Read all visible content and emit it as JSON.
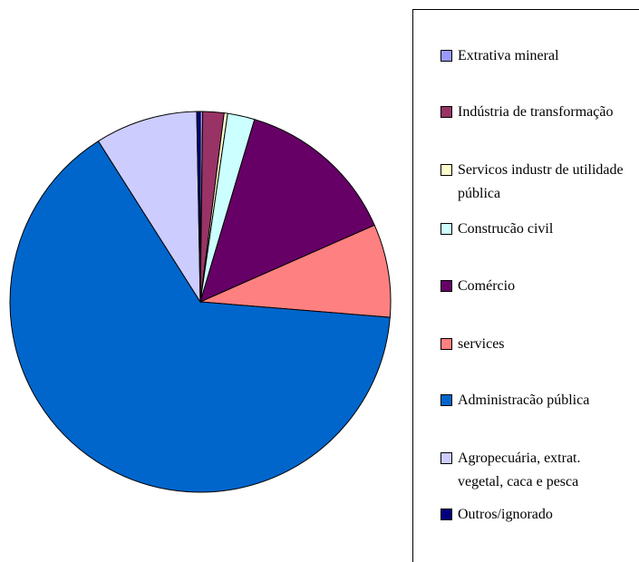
{
  "chart_data": {
    "type": "pie",
    "categories": [
      "Extrativa mineral",
      "Indústria de transformação",
      "Servicos industr de utilidade pública",
      "Construcão civil",
      "Comércio",
      "services",
      "Administracão pública",
      "Agropecuária, extrat. vegetal, caca e pesca",
      "Outros/ignorado"
    ],
    "values": [
      0.2,
      1.8,
      0.3,
      2.3,
      13.8,
      7.9,
      64.7,
      8.7,
      0.3
    ],
    "colors": [
      "#9999ff",
      "#993366",
      "#ffffcc",
      "#ccffff",
      "#660066",
      "#ff8080",
      "#0066cc",
      "#ccccff",
      "#000080"
    ],
    "legend": "right"
  }
}
